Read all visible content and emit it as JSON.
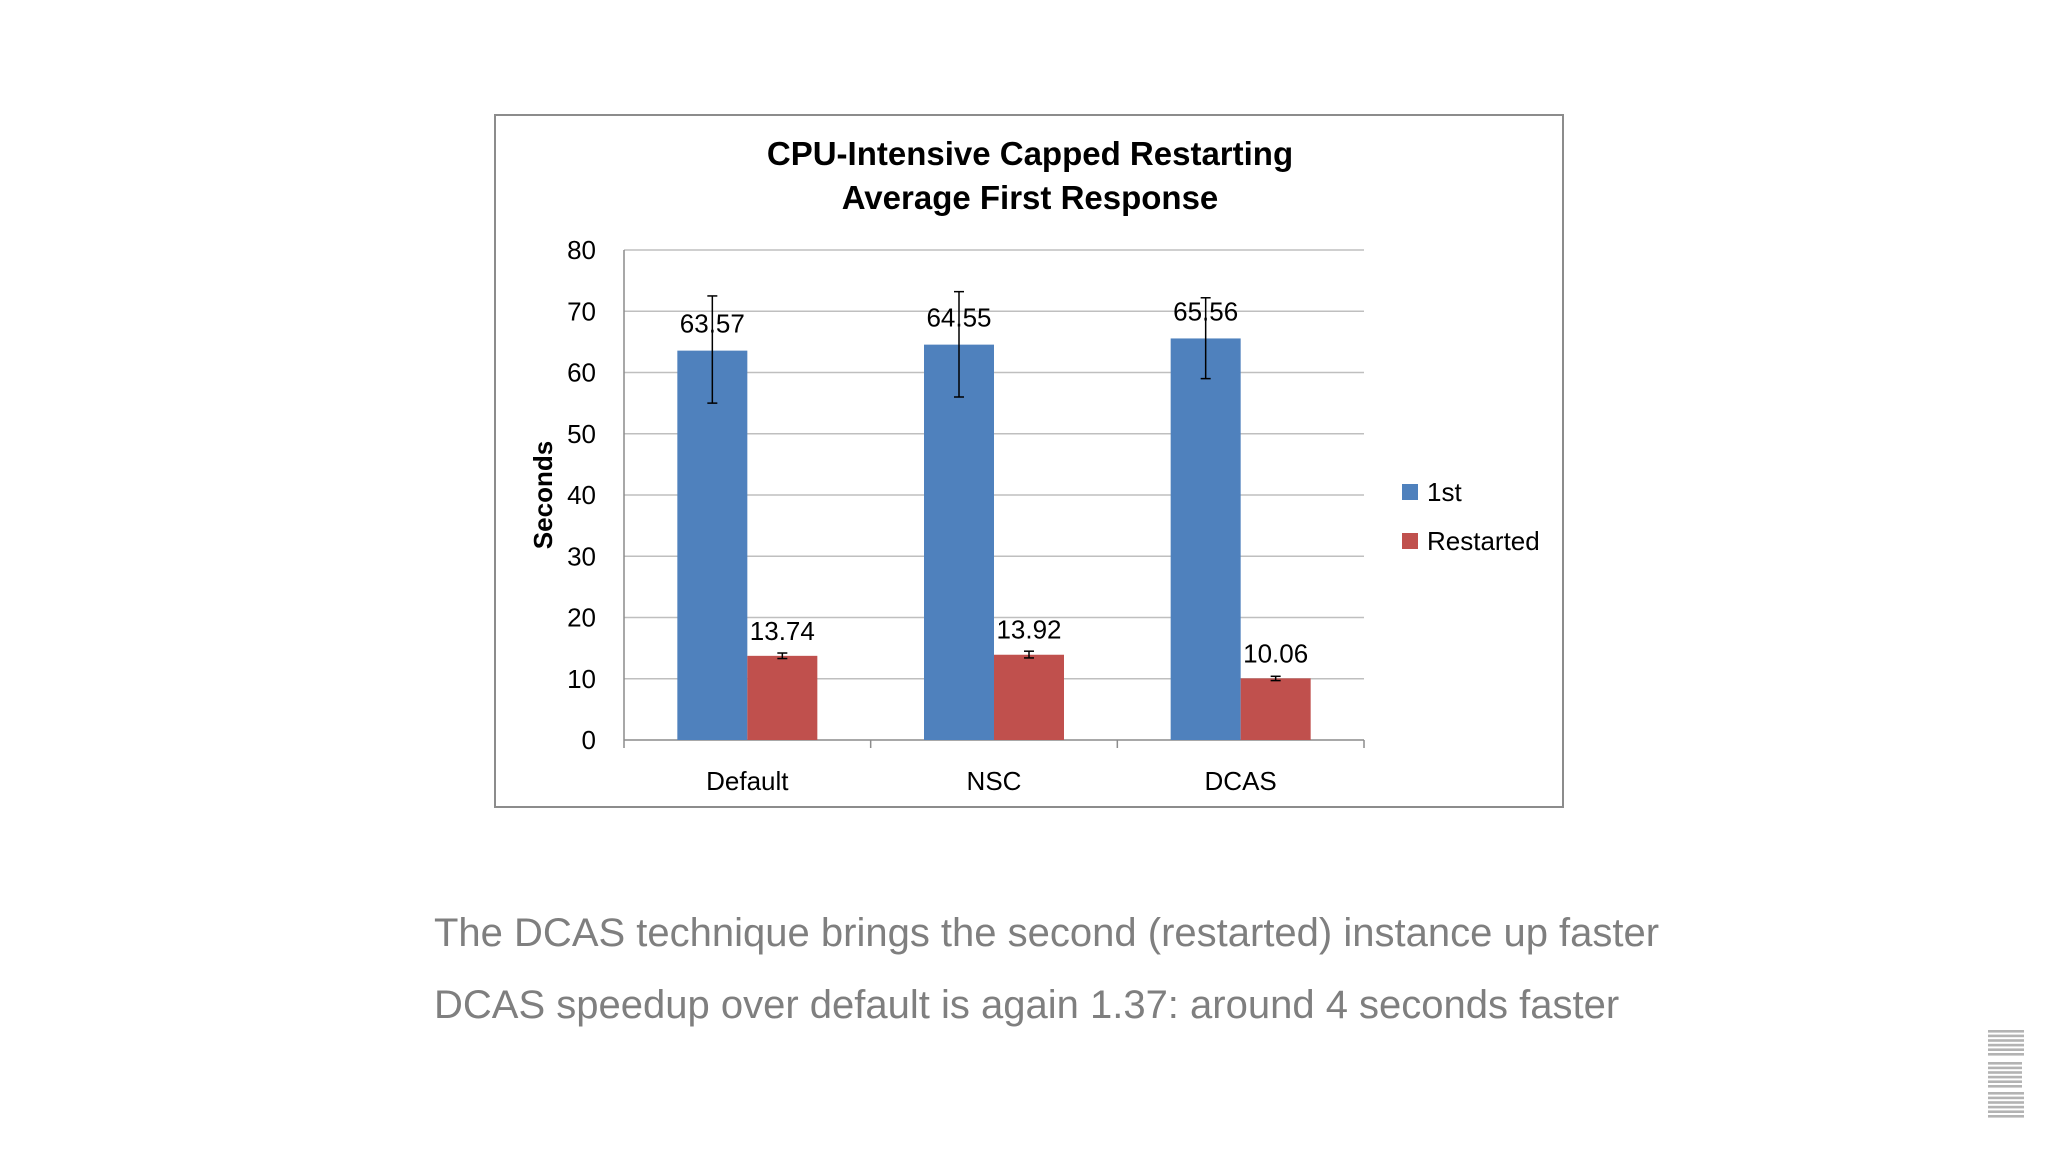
{
  "chart_data": {
    "type": "bar",
    "title": "CPU-Intensive Capped Restarting",
    "subtitle": "Average First Response",
    "xlabel": "",
    "ylabel": "Seconds",
    "ylim": [
      0,
      80
    ],
    "yticks": [
      0,
      10,
      20,
      30,
      40,
      50,
      60,
      70,
      80
    ],
    "grid": true,
    "legend_position": "right",
    "categories": [
      "Default",
      "NSC",
      "DCAS"
    ],
    "series": [
      {
        "name": "1st",
        "color": "#4f81bd",
        "values": [
          63.57,
          64.55,
          65.56
        ],
        "labels": [
          "63.57",
          "64.55",
          "65.56"
        ],
        "error": [
          [
            55,
            72.5
          ],
          [
            56,
            73.2
          ],
          [
            59,
            72.2
          ]
        ]
      },
      {
        "name": "Restarted",
        "color": "#c0504d",
        "values": [
          13.74,
          13.92,
          10.06
        ],
        "labels": [
          "13.74",
          "13.92",
          "10.06"
        ],
        "error": [
          [
            13.3,
            14.2
          ],
          [
            13.4,
            14.5
          ],
          [
            9.7,
            10.4
          ]
        ]
      }
    ]
  },
  "captions": {
    "line1": "The DCAS technique brings the second (restarted) instance up faster",
    "line2": "DCAS speedup over default is again 1.37: around 4 seconds faster"
  },
  "logo": {
    "name": "ibm-logo",
    "color": "#b3b3b3"
  }
}
